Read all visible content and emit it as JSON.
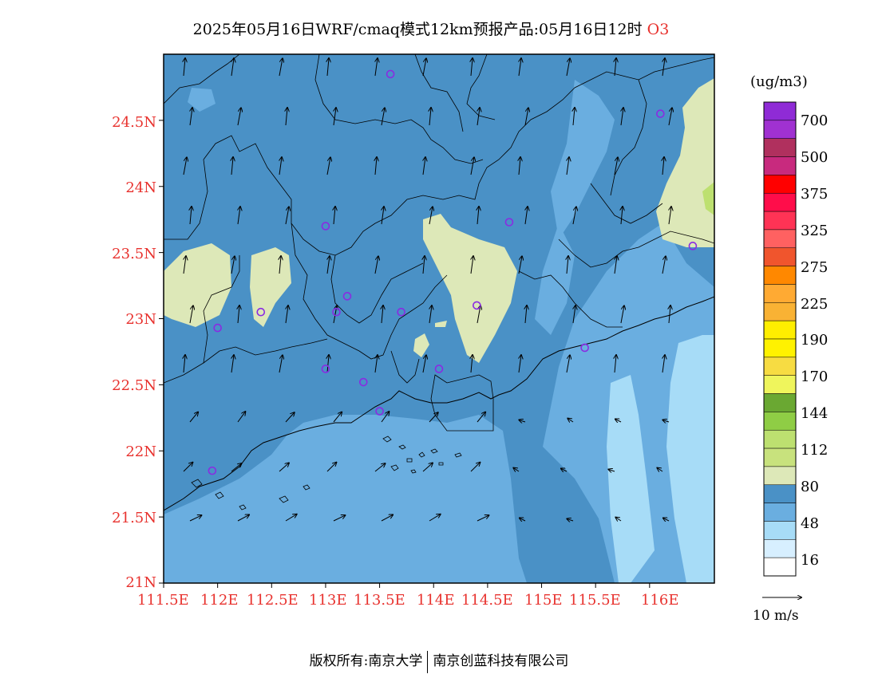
{
  "title": {
    "text": "2025年05月16日WRF/cmaq模式12km预报产品:05月16日12时",
    "species": "O3"
  },
  "map": {
    "lat_labels": [
      "24.5N",
      "24N",
      "23.5N",
      "23N",
      "22.5N",
      "22N",
      "21.5N",
      "21N"
    ],
    "lat_values": [
      24.5,
      24,
      23.5,
      23,
      22.5,
      22,
      21.5,
      21
    ],
    "lon_labels": [
      "111.5E",
      "112E",
      "112.5E",
      "113E",
      "113.5E",
      "114E",
      "114.5E",
      "115E",
      "115.5E",
      "116E"
    ],
    "lon_values": [
      111.5,
      112,
      112.5,
      113,
      113.5,
      114,
      114.5,
      115,
      115.5,
      116
    ],
    "lat_range": [
      21,
      25
    ],
    "lon_range": [
      111.5,
      116.6
    ],
    "station_markers": [
      {
        "lon": 113.6,
        "lat": 24.85
      },
      {
        "lon": 116.1,
        "lat": 24.55
      },
      {
        "lon": 113.0,
        "lat": 23.7
      },
      {
        "lon": 114.7,
        "lat": 23.73
      },
      {
        "lon": 116.4,
        "lat": 23.55
      },
      {
        "lon": 113.2,
        "lat": 23.17
      },
      {
        "lon": 112.4,
        "lat": 23.05
      },
      {
        "lon": 113.1,
        "lat": 23.05
      },
      {
        "lon": 113.7,
        "lat": 23.05
      },
      {
        "lon": 114.4,
        "lat": 23.1
      },
      {
        "lon": 112.0,
        "lat": 22.93
      },
      {
        "lon": 115.4,
        "lat": 22.78
      },
      {
        "lon": 113.0,
        "lat": 22.62
      },
      {
        "lon": 114.05,
        "lat": 22.62
      },
      {
        "lon": 113.35,
        "lat": 22.52
      },
      {
        "lon": 113.5,
        "lat": 22.3
      },
      {
        "lon": 111.95,
        "lat": 21.85
      }
    ]
  },
  "legend": {
    "unit": "(ug/m3)",
    "labels": [
      "700",
      "500",
      "375",
      "325",
      "275",
      "225",
      "190",
      "170",
      "144",
      "112",
      "80",
      "48",
      "16"
    ],
    "colors_top_to_bottom": [
      "#8f2bd6",
      "#a031d1",
      "#b0305e",
      "#c82a7e",
      "#ff0000",
      "#ff0d4a",
      "#ff3355",
      "#ff6161",
      "#f0552d",
      "#ff8800",
      "#ffaa33",
      "#f9b234",
      "#ffee00",
      "#fff200",
      "#f7dc42",
      "#eff55c",
      "#6aa832",
      "#8fcd45",
      "#bde070",
      "#c8e27d",
      "#dde8b8",
      "#4a91c6",
      "#6aaee0",
      "#a7dcf7",
      "#d7efff",
      "#ffffff"
    ]
  },
  "wind_reference": {
    "label": "10 m/s"
  },
  "footer": {
    "copyright_label": "版权所有:",
    "owner": "南京大学",
    "partner": "南京创蓝科技有限公司"
  },
  "colors": {
    "axis_text": "#e8322e",
    "band_low": "#6aaee0",
    "band_mid": "#4a91c6",
    "band_light": "#a7dcf7",
    "band_high": "#dde8b8",
    "marker": "#8a2be2"
  }
}
